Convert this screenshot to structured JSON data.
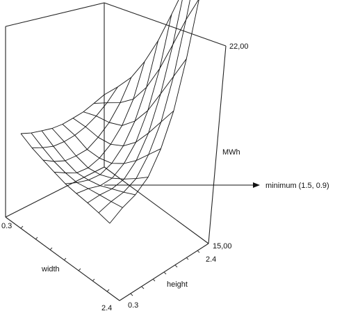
{
  "chart_data": {
    "type": "surface",
    "x_axis": {
      "label": "width",
      "min_label": "0.3",
      "max_label": "2.4",
      "range": [
        0.3,
        2.4
      ]
    },
    "y_axis": {
      "label": "height",
      "min_label": "0.3",
      "max_label": "2.4",
      "range": [
        0.3,
        2.4
      ]
    },
    "z_axis": {
      "label": "MWh",
      "min_label": "15,00",
      "max_label": "22,00",
      "range": [
        15.0,
        22.0
      ]
    },
    "grid_points": 9,
    "z_grid": [
      [
        17.6,
        17.6,
        17.7,
        17.8,
        18.0,
        18.3,
        18.6,
        19.0,
        19.4
      ],
      [
        17.4,
        17.2,
        17.1,
        17.2,
        17.4,
        17.7,
        18.1,
        18.6,
        19.2
      ],
      [
        17.3,
        16.8,
        16.5,
        16.5,
        16.6,
        17.0,
        17.5,
        18.2,
        19.1
      ],
      [
        17.2,
        16.5,
        16.0,
        15.9,
        16.1,
        16.5,
        17.1,
        18.0,
        19.3
      ],
      [
        17.1,
        16.3,
        15.8,
        15.6,
        15.8,
        16.3,
        17.1,
        18.2,
        19.7
      ],
      [
        17.2,
        16.4,
        15.7,
        15.5,
        15.8,
        16.4,
        17.4,
        18.7,
        20.3
      ],
      [
        17.4,
        16.5,
        15.8,
        15.6,
        16.0,
        16.8,
        18.0,
        19.4,
        20.9
      ],
      [
        17.6,
        16.6,
        15.9,
        15.8,
        16.4,
        17.3,
        18.6,
        20.1,
        21.5
      ],
      [
        17.8,
        16.8,
        16.1,
        16.1,
        16.8,
        17.8,
        19.2,
        20.6,
        21.9
      ]
    ],
    "annotation": {
      "text": "minimum (1.5, 0.9)",
      "x": 1.5,
      "y": 0.9
    },
    "grid": false
  }
}
